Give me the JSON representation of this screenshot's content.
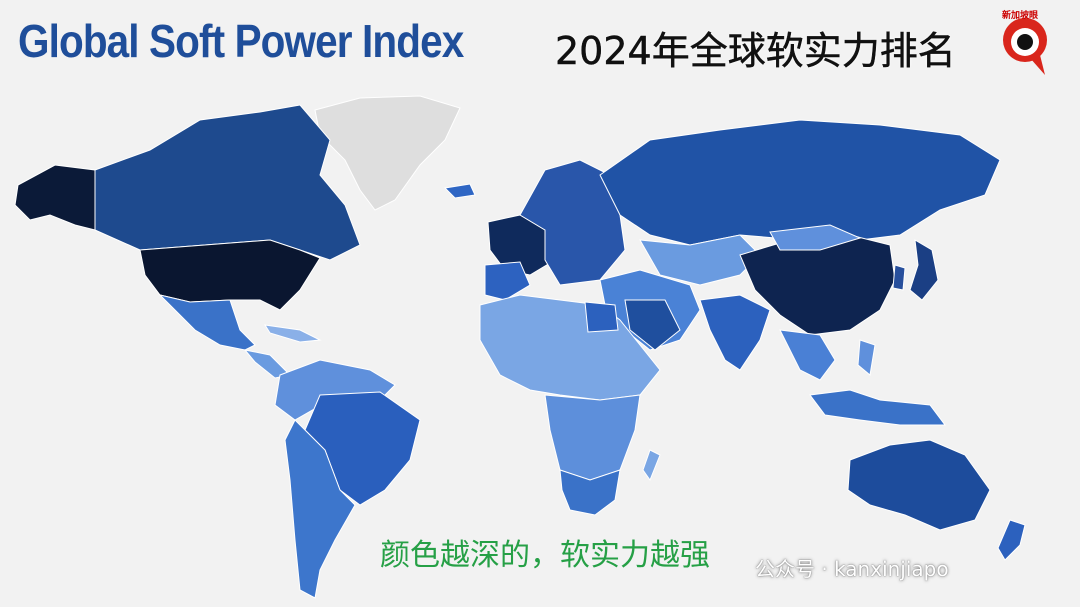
{
  "header": {
    "title_en": "Global Soft Power Index",
    "title_zh": "2024年全球软实力排名",
    "logo": "新加坡眼"
  },
  "caption": "颜色越深的，软实力越强",
  "watermark": "公众号 · kanxinjiapo"
}
